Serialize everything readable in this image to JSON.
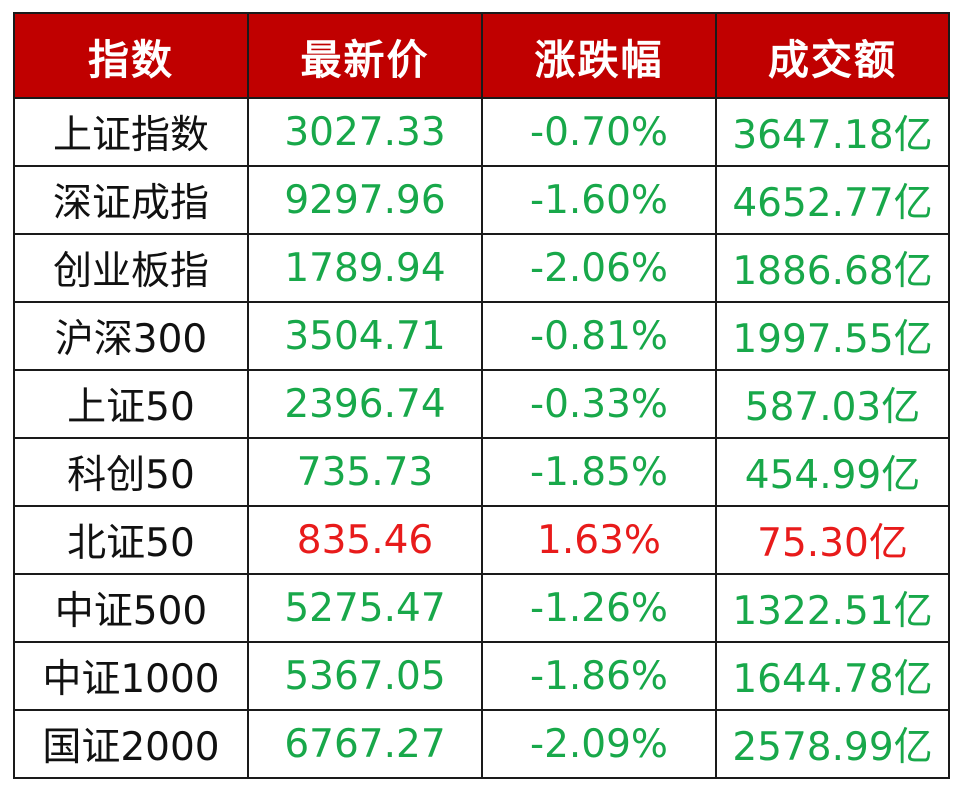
{
  "table": {
    "headers": [
      "指数",
      "最新价",
      "涨跌幅",
      "成交额"
    ],
    "rows": [
      {
        "name": "上证指数",
        "price": "3027.33",
        "change": "-0.70%",
        "turnover": "3647.18亿",
        "trend": "down"
      },
      {
        "name": "深证成指",
        "price": "9297.96",
        "change": "-1.60%",
        "turnover": "4652.77亿",
        "trend": "down"
      },
      {
        "name": "创业板指",
        "price": "1789.94",
        "change": "-2.06%",
        "turnover": "1886.68亿",
        "trend": "down"
      },
      {
        "name": "沪深300",
        "price": "3504.71",
        "change": "-0.81%",
        "turnover": "1997.55亿",
        "trend": "down"
      },
      {
        "name": "上证50",
        "price": "2396.74",
        "change": "-0.33%",
        "turnover": "587.03亿",
        "trend": "down"
      },
      {
        "name": "科创50",
        "price": "735.73",
        "change": "-1.85%",
        "turnover": "454.99亿",
        "trend": "down"
      },
      {
        "name": "北证50",
        "price": "835.46",
        "change": "1.63%",
        "turnover": "75.30亿",
        "trend": "up"
      },
      {
        "name": "中证500",
        "price": "5275.47",
        "change": "-1.26%",
        "turnover": "1322.51亿",
        "trend": "down"
      },
      {
        "name": "中证1000",
        "price": "5367.05",
        "change": "-1.86%",
        "turnover": "1644.78亿",
        "trend": "down"
      },
      {
        "name": "国证2000",
        "price": "6767.27",
        "change": "-2.09%",
        "turnover": "2578.99亿",
        "trend": "down"
      }
    ]
  },
  "colors": {
    "header_bg": "#c00000",
    "header_text": "#ffffff",
    "down": "#18a84a",
    "up": "#e81b1b",
    "border": "#1a1a1a"
  }
}
